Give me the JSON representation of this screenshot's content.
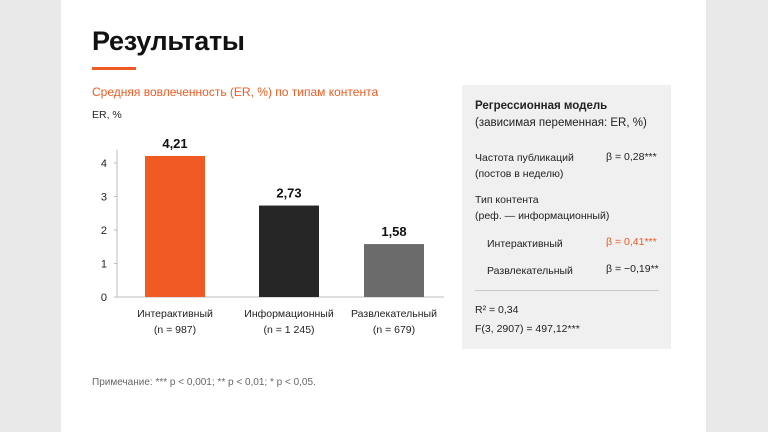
{
  "slide": {
    "title": "Результаты",
    "note": "Примечание: *** p < 0,001; ** p < 0,01; * p < 0,05."
  },
  "chart_data": {
    "type": "bar",
    "title": "Средняя вовлеченность (ER, %) по типам контента",
    "ylabel": "ER, %",
    "xlabel": "",
    "categories": [
      "Интерактивный",
      "Информационный",
      "Развлекательный"
    ],
    "category_sublabels": [
      "(n = 987)",
      "(n = 1 245)",
      "(n = 679)"
    ],
    "values": [
      4.21,
      2.73,
      1.58
    ],
    "value_labels": [
      "4,21",
      "2,73",
      "1,58"
    ],
    "yticks": [
      0,
      1,
      2,
      3,
      4
    ],
    "ylim": [
      0,
      5
    ],
    "colors": [
      "#f15a22",
      "#262626",
      "#6b6b6b"
    ],
    "grid": false
  },
  "regression": {
    "title": "Регрессионная модель",
    "subtitle": "(зависимая переменная: ER, %)",
    "freq_label_1": "Частота публикаций",
    "freq_label_2": "(постов в неделю)",
    "freq_beta": "β = 0,28***",
    "type_label_1": "Тип контента",
    "type_label_2": "(реф. — информационный)",
    "interactive_label": "Интерактивный",
    "interactive_beta": "β = 0,41***",
    "entertain_label": "Развлекательный",
    "entertain_beta": "β = −0,19**",
    "r2": "R² = 0,34",
    "f_stat": "F(3, 2907) = 497,12***",
    "accent_color": "#f15a22"
  }
}
